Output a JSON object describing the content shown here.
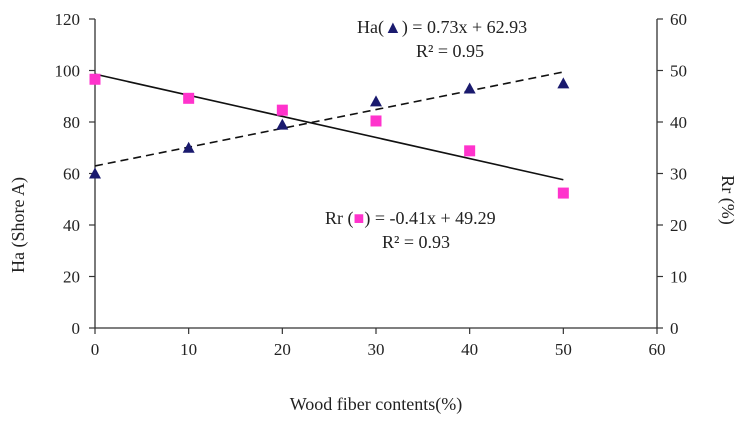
{
  "chart_data": {
    "type": "scatter",
    "xlabel": "Wood fiber contents(%)",
    "ylabel": "Ha (Shore A)",
    "y2label": "Rr (%)",
    "xlim": [
      0,
      60
    ],
    "ylim": [
      0,
      120
    ],
    "y2lim": [
      0,
      60
    ],
    "xticks": [
      0,
      10,
      20,
      30,
      40,
      50,
      60
    ],
    "yticks": [
      0,
      20,
      40,
      60,
      80,
      100,
      120
    ],
    "y2ticks": [
      0,
      10,
      20,
      30,
      40,
      50,
      60
    ],
    "grid": false,
    "series": [
      {
        "marker": "triangle",
        "axis": "left",
        "color": "#1a1a6e",
        "x": [
          0,
          10,
          20,
          30,
          40,
          50
        ],
        "y": [
          60,
          70,
          79,
          88,
          93,
          95
        ],
        "trend": {
          "slope": 0.73,
          "intercept": 62.93,
          "style": "dashed"
        },
        "equation": {
          "prefix": "Ha(",
          "suffix": ")  = 0.73x + 62.93",
          "r2": "R² = 0.95"
        }
      },
      {
        "marker": "square",
        "axis": "right",
        "color": "#ff33cc",
        "x": [
          0,
          10,
          20,
          30,
          40,
          50
        ],
        "y": [
          48.3,
          44.6,
          42.3,
          40.2,
          34.4,
          26.2
        ],
        "trend": {
          "slope": -0.41,
          "intercept": 49.29,
          "style": "solid"
        },
        "equation": {
          "prefix": "Rr (",
          "suffix": ") = -0.41x + 49.29",
          "r2": "R²  = 0.93"
        }
      }
    ]
  }
}
